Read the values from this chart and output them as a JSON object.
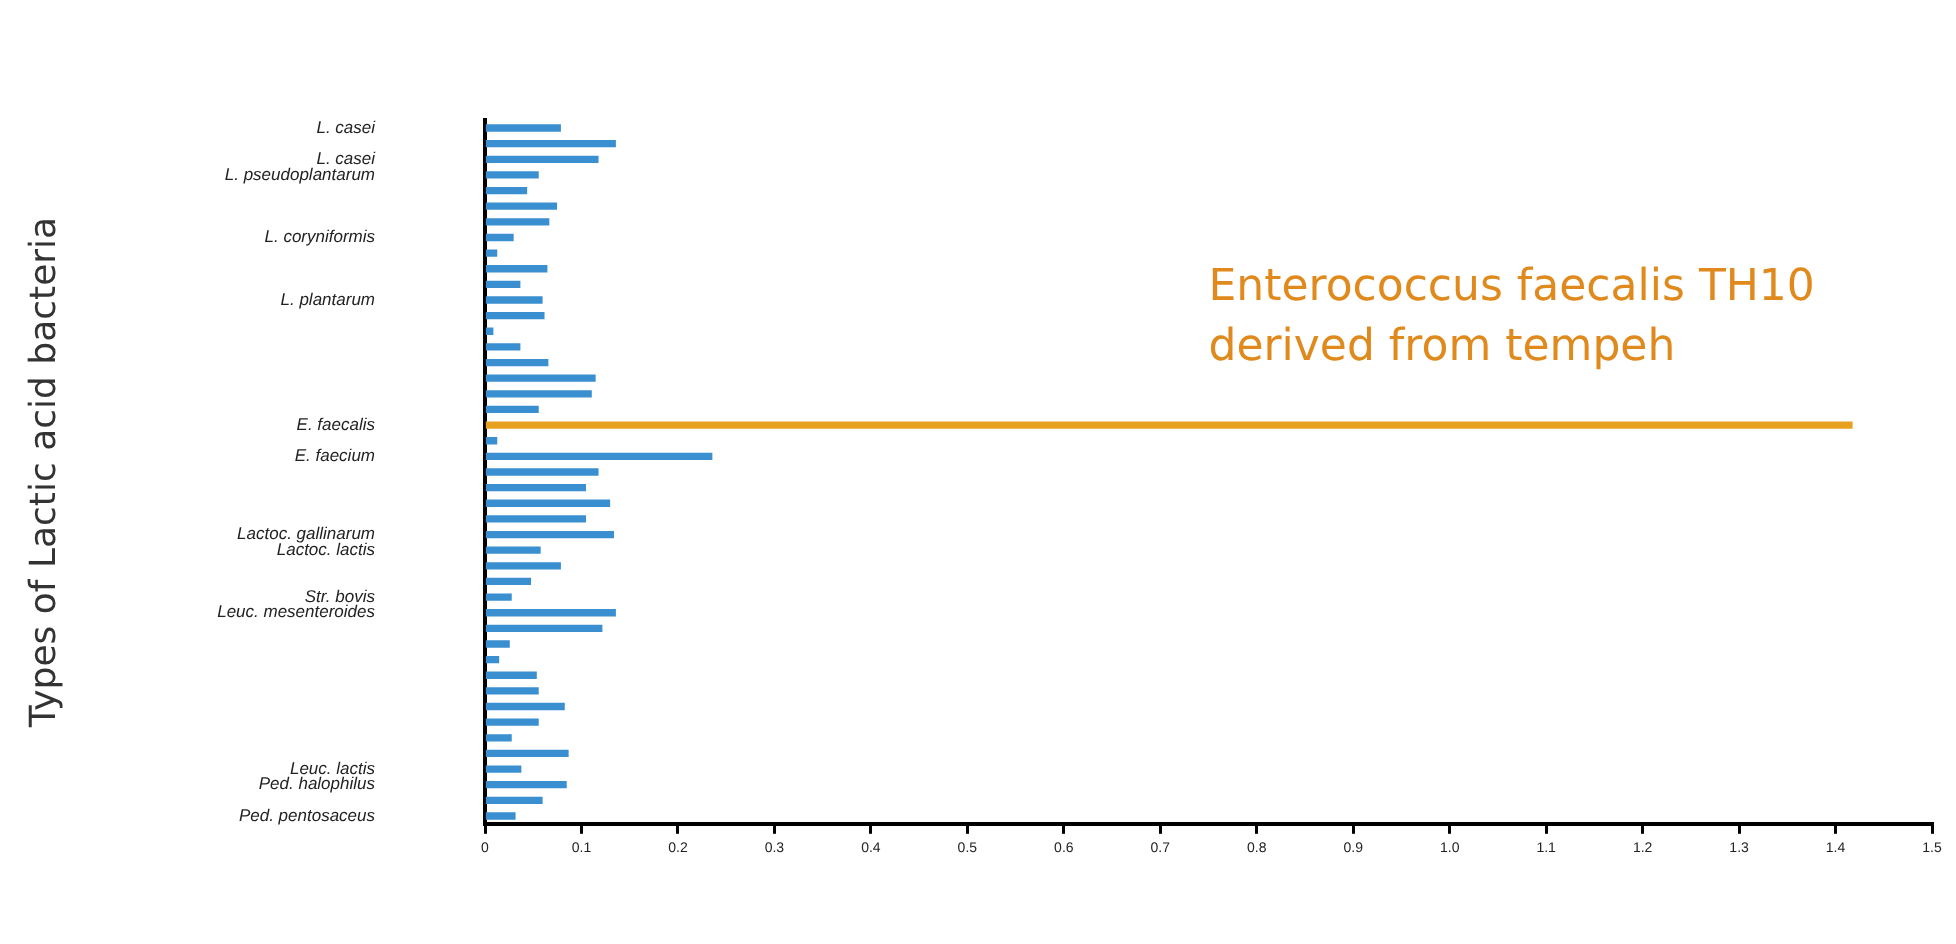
{
  "chart_data": {
    "type": "bar",
    "orientation": "horizontal",
    "ylabel": "Types of Lactic acid bacteria",
    "categories": [
      "L. casei",
      null,
      "L. casei",
      "L. pseudoplantarum",
      null,
      null,
      null,
      "L. coryniformis",
      null,
      null,
      null,
      "L. plantarum",
      null,
      null,
      null,
      null,
      null,
      null,
      null,
      "E. faecalis",
      null,
      "E. faecium",
      null,
      null,
      null,
      null,
      "Lactoc. gallinarum",
      "Lactoc. lactis",
      null,
      null,
      "Str. bovis",
      "Leuc. mesenteroides",
      null,
      null,
      null,
      null,
      null,
      null,
      null,
      null,
      null,
      "Leuc. lactis",
      "Ped. halophilus",
      null,
      "Ped. pentosaceus"
    ],
    "values": [
      0.078,
      0.135,
      0.117,
      0.055,
      0.043,
      0.074,
      0.066,
      0.029,
      0.012,
      0.064,
      0.036,
      0.059,
      0.061,
      0.008,
      0.036,
      0.065,
      0.114,
      0.11,
      0.055,
      1.417,
      0.012,
      0.235,
      0.117,
      0.104,
      0.129,
      0.104,
      0.133,
      0.057,
      0.078,
      0.047,
      0.027,
      0.135,
      0.121,
      0.025,
      0.014,
      0.053,
      0.055,
      0.082,
      0.055,
      0.027,
      0.086,
      0.037,
      0.084,
      0.059,
      0.031
    ],
    "colors": [
      "#3a8fd0",
      "#3a8fd0",
      "#3a8fd0",
      "#3a8fd0",
      "#3a8fd0",
      "#3a8fd0",
      "#3a8fd0",
      "#3a8fd0",
      "#3a8fd0",
      "#3a8fd0",
      "#3a8fd0",
      "#3a8fd0",
      "#3a8fd0",
      "#3a8fd0",
      "#3a8fd0",
      "#3a8fd0",
      "#3a8fd0",
      "#3a8fd0",
      "#3a8fd0",
      "#e8a020",
      "#3a8fd0",
      "#3a8fd0",
      "#3a8fd0",
      "#3a8fd0",
      "#3a8fd0",
      "#3a8fd0",
      "#3a8fd0",
      "#3a8fd0",
      "#3a8fd0",
      "#3a8fd0",
      "#3a8fd0",
      "#3a8fd0",
      "#3a8fd0",
      "#3a8fd0",
      "#3a8fd0",
      "#3a8fd0",
      "#3a8fd0",
      "#3a8fd0",
      "#3a8fd0",
      "#3a8fd0",
      "#3a8fd0",
      "#3a8fd0",
      "#3a8fd0",
      "#3a8fd0",
      "#3a8fd0"
    ],
    "xlim": [
      0,
      1.5
    ],
    "xticks": [
      0,
      0.1,
      0.2,
      0.3,
      0.4,
      0.5,
      0.6,
      0.7,
      0.8,
      0.9,
      {
        "value": 1,
        "label": "1.0"
      },
      1.1,
      1.2,
      1.3,
      1.4,
      1.5
    ],
    "annotations": [
      "Enterococcus faecalis TH10\nderived from tempeh"
    ],
    "grid": false,
    "legend": false
  }
}
